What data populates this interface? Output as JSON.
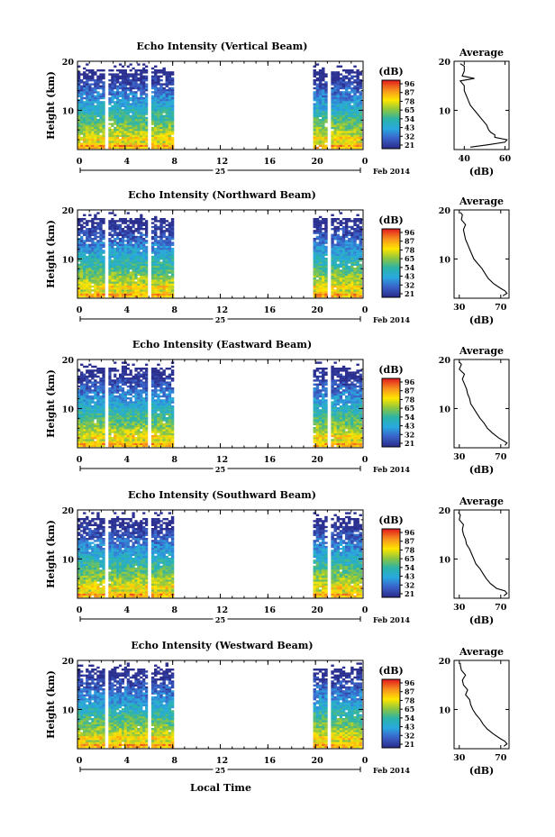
{
  "figure": {
    "bottom_xlabel": "Local Time",
    "date_label": "Feb 2014",
    "day_label": "25",
    "avg_title": "Average",
    "avg_xlabel": "(dB)",
    "colorbar_unit": "(dB)",
    "colorbar_ticks": [
      "96",
      "87",
      "78",
      "65",
      "54",
      "43",
      "32",
      "21"
    ],
    "colorbar_colors": [
      "#e4231f",
      "#f7941d",
      "#ffe600",
      "#8cc63f",
      "#2bb3a8",
      "#29a9e0",
      "#3a62c9",
      "#2b2f8f"
    ]
  },
  "chart_data": [
    {
      "type": "heatmap",
      "title": "Echo Intensity (Vertical Beam)",
      "ylabel": "Height (km)",
      "xlabel": "Local Time",
      "x_ticks": [
        "0",
        "4",
        "8",
        "12",
        "16",
        "20",
        "0"
      ],
      "y_ticks": [
        "10",
        "20"
      ],
      "xlim": [
        0,
        24
      ],
      "ylim": [
        2,
        20
      ],
      "data_segments_hours": [
        [
          0,
          2.3
        ],
        [
          2.6,
          5.9
        ],
        [
          6.2,
          8.1
        ],
        [
          19.8,
          21.0
        ],
        [
          21.3,
          23.9
        ]
      ],
      "avg_profile": {
        "x_ticks": [
          "40",
          "60"
        ],
        "y_ticks": [
          "10",
          "20"
        ],
        "xlim": [
          35,
          62
        ],
        "ylim": [
          2,
          20
        ],
        "heights_km": [
          2.5,
          3,
          3.5,
          4,
          4.5,
          5,
          5.5,
          6,
          7,
          8,
          9,
          10,
          11,
          12,
          13,
          14,
          15,
          16,
          16.5,
          17,
          18,
          19,
          19.5
        ],
        "values_db": [
          43,
          52,
          60,
          61,
          55,
          55,
          53,
          52,
          51,
          49,
          47,
          45,
          43,
          42,
          41,
          40,
          40,
          38,
          45,
          39,
          40,
          40,
          38
        ]
      }
    },
    {
      "type": "heatmap",
      "title": "Echo Intensity (Northward Beam)",
      "ylabel": "Height (km)",
      "xlabel": "Local Time",
      "x_ticks": [
        "0",
        "4",
        "8",
        "12",
        "16",
        "20",
        "0"
      ],
      "y_ticks": [
        "10",
        "20"
      ],
      "xlim": [
        0,
        24
      ],
      "ylim": [
        2,
        20
      ],
      "data_segments_hours": [
        [
          0,
          2.3
        ],
        [
          2.6,
          5.9
        ],
        [
          6.2,
          8.1
        ],
        [
          19.8,
          21.0
        ],
        [
          21.3,
          23.9
        ]
      ],
      "avg_profile": {
        "x_ticks": [
          "30",
          "70"
        ],
        "y_ticks": [
          "10",
          "20"
        ],
        "xlim": [
          25,
          78
        ],
        "ylim": [
          2,
          20
        ],
        "heights_km": [
          2.5,
          3,
          3.5,
          4,
          5,
          6,
          7,
          8,
          9,
          10,
          11,
          12,
          13,
          14,
          15,
          16,
          17,
          18,
          19,
          19.5
        ],
        "values_db": [
          72,
          76,
          74,
          70,
          63,
          58,
          55,
          52,
          48,
          44,
          42,
          40,
          38,
          36,
          35,
          34,
          36,
          32,
          33,
          31
        ]
      }
    },
    {
      "type": "heatmap",
      "title": "Echo Intensity (Eastward Beam)",
      "ylabel": "Height (km)",
      "xlabel": "Local Time",
      "x_ticks": [
        "0",
        "4",
        "8",
        "12",
        "16",
        "20",
        "0"
      ],
      "y_ticks": [
        "10",
        "20"
      ],
      "xlim": [
        0,
        24
      ],
      "ylim": [
        2,
        20
      ],
      "data_segments_hours": [
        [
          0,
          2.3
        ],
        [
          2.6,
          5.9
        ],
        [
          6.2,
          8.1
        ],
        [
          19.8,
          21.0
        ],
        [
          21.3,
          23.9
        ]
      ],
      "avg_profile": {
        "x_ticks": [
          "30",
          "70"
        ],
        "y_ticks": [
          "10",
          "20"
        ],
        "xlim": [
          25,
          78
        ],
        "ylim": [
          2,
          20
        ],
        "heights_km": [
          2.5,
          3,
          3.5,
          4,
          5,
          6,
          7,
          8,
          9,
          10,
          11,
          12,
          13,
          14,
          15,
          16,
          17,
          18,
          19,
          19.5
        ],
        "values_db": [
          74,
          76,
          72,
          68,
          62,
          57,
          54,
          50,
          47,
          44,
          41,
          40,
          38,
          37,
          35,
          33,
          35,
          30,
          32,
          30
        ]
      }
    },
    {
      "type": "heatmap",
      "title": "Echo Intensity (Southward Beam)",
      "ylabel": "Height (km)",
      "xlabel": "Local Time",
      "x_ticks": [
        "0",
        "4",
        "8",
        "12",
        "16",
        "20",
        "0"
      ],
      "y_ticks": [
        "10",
        "20"
      ],
      "xlim": [
        0,
        24
      ],
      "ylim": [
        2,
        20
      ],
      "data_segments_hours": [
        [
          0,
          2.3
        ],
        [
          2.6,
          5.9
        ],
        [
          6.2,
          8.1
        ],
        [
          19.8,
          21.0
        ],
        [
          21.3,
          23.9
        ]
      ],
      "avg_profile": {
        "x_ticks": [
          "30",
          "70"
        ],
        "y_ticks": [
          "10",
          "20"
        ],
        "xlim": [
          25,
          78
        ],
        "ylim": [
          2,
          20
        ],
        "heights_km": [
          2.5,
          3,
          3.5,
          4,
          5,
          6,
          7,
          8,
          9,
          10,
          11,
          12,
          13,
          14,
          15,
          16,
          17,
          18,
          19,
          19.5
        ],
        "values_db": [
          73,
          76,
          74,
          66,
          60,
          56,
          53,
          50,
          46,
          44,
          42,
          40,
          37,
          36,
          34,
          33,
          34,
          30,
          31,
          29
        ]
      }
    },
    {
      "type": "heatmap",
      "title": "Echo Intensity (Westward Beam)",
      "ylabel": "Height (km)",
      "xlabel": "Local Time",
      "x_ticks": [
        "0",
        "4",
        "8",
        "12",
        "16",
        "20",
        "0"
      ],
      "y_ticks": [
        "10",
        "20"
      ],
      "xlim": [
        0,
        24
      ],
      "ylim": [
        2,
        20
      ],
      "data_segments_hours": [
        [
          0,
          2.3
        ],
        [
          2.6,
          5.9
        ],
        [
          6.2,
          8.1
        ],
        [
          19.8,
          21.0
        ],
        [
          21.3,
          23.9
        ]
      ],
      "avg_profile": {
        "x_ticks": [
          "30",
          "70"
        ],
        "y_ticks": [
          "10",
          "20"
        ],
        "xlim": [
          25,
          78
        ],
        "ylim": [
          2,
          20
        ],
        "heights_km": [
          2.5,
          3,
          3.5,
          4,
          5,
          6,
          7,
          8,
          9,
          10,
          11,
          12,
          13,
          14,
          15,
          16,
          17,
          18,
          19,
          19.5
        ],
        "values_db": [
          73,
          76,
          74,
          70,
          63,
          57,
          53,
          50,
          46,
          43,
          41,
          40,
          36,
          38,
          34,
          33,
          36,
          32,
          31,
          31
        ]
      }
    }
  ]
}
